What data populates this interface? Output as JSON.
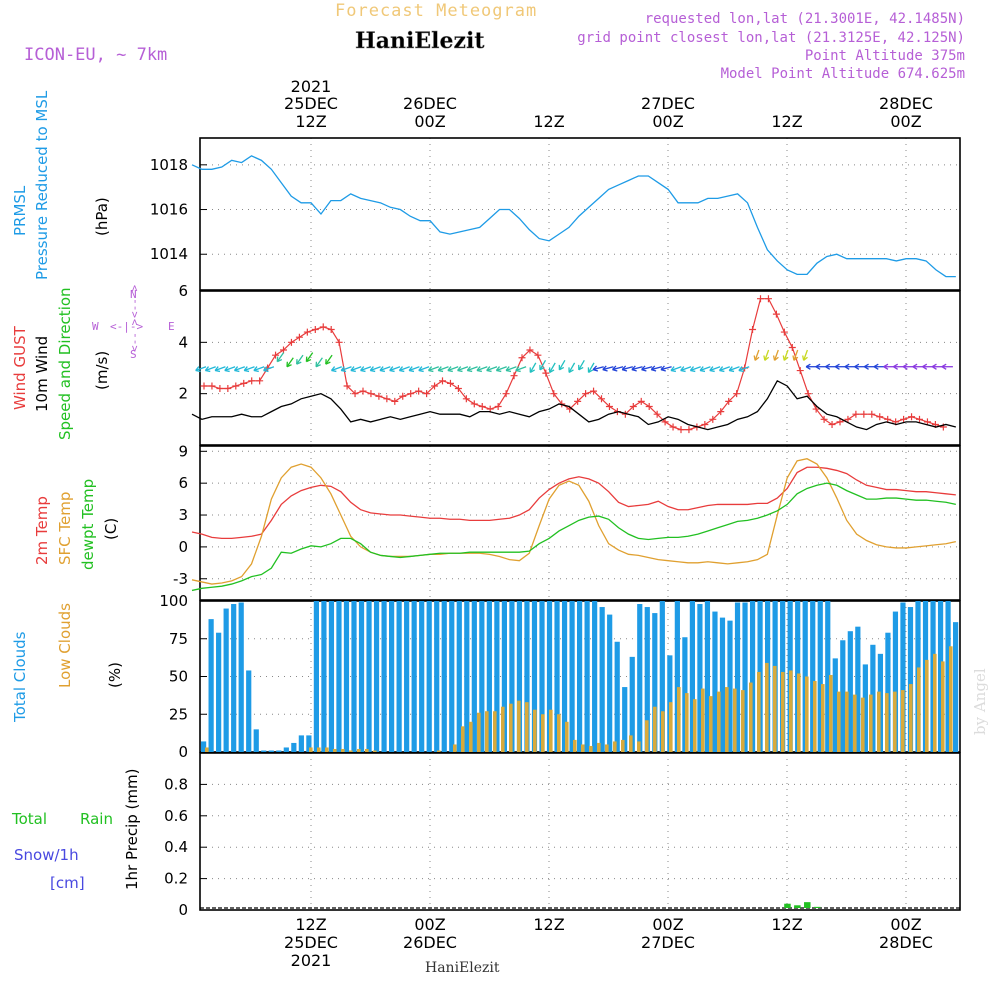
{
  "header": {
    "super_title": "Forecast Meteogram",
    "station": "HaniElezit",
    "model": "ICON-EU, ~ 7km",
    "requested": "requested lon,lat (21.3001E, 42.1485N)",
    "closest": "grid point closest lon,lat (21.3125E, 42.125N)",
    "point_alt": "Point Altitude 375m",
    "model_alt": "Model Point Altitude 674.625m",
    "watermark": "by Angel",
    "footer_station": "HaniElezit"
  },
  "colors": {
    "pressure": "#1e9be6",
    "gust": "#e83c3c",
    "wind": "#000000",
    "t2m": "#e83c3c",
    "sfc": "#e0a030",
    "dew": "#22c022",
    "total_clouds": "#1e9be6",
    "low_clouds": "#d8aa3c",
    "rain": "#22c022",
    "snow": "#4848e0",
    "purple_text": "#b65fd6",
    "orange_text": "#f0c878"
  },
  "top_axis": [
    {
      "line1": "2021",
      "line2": "25DEC",
      "line3": "12Z"
    },
    {
      "line1": "",
      "line2": "26DEC",
      "line3": "00Z"
    },
    {
      "line1": "",
      "line2": "",
      "line3": "12Z"
    },
    {
      "line1": "",
      "line2": "27DEC",
      "line3": "00Z"
    },
    {
      "line1": "",
      "line2": "",
      "line3": "12Z"
    },
    {
      "line1": "",
      "line2": "28DEC",
      "line3": "00Z"
    }
  ],
  "bottom_axis": [
    {
      "line1": "12Z",
      "line2": "25DEC",
      "line3": "2021"
    },
    {
      "line1": "00Z",
      "line2": "26DEC",
      "line3": ""
    },
    {
      "line1": "12Z",
      "line2": "",
      "line3": ""
    },
    {
      "line1": "00Z",
      "line2": "27DEC",
      "line3": ""
    },
    {
      "line1": "12Z",
      "line2": "",
      "line3": ""
    },
    {
      "line1": "00Z",
      "line2": "28DEC",
      "line3": ""
    }
  ],
  "panel_labels": {
    "p1": {
      "a": "PRMSL",
      "b": "Pressure Reduced to MSL",
      "unit": "(hPa)"
    },
    "p2": {
      "a": "Wind GUST",
      "b": "10m Wind",
      "c": "Speed and Direction",
      "unit": "(m/s)",
      "compass": {
        "n": "N",
        "s": "S",
        "w": "W",
        "e": "E",
        "up": "<-- >",
        "down": "<-- >",
        "mid": "<-|->"
      }
    },
    "p3": {
      "a": "2m Temp",
      "b": "SFC Temp",
      "c": "dewpt Temp",
      "unit": "(C)"
    },
    "p4": {
      "a": "Total Clouds",
      "b": "Low Clouds",
      "unit": "(%)"
    },
    "p5": {
      "a": "Total",
      "b": "Rain",
      "c": "Snow/1h",
      "d": "[cm]",
      "unit": "1hr Precip (mm)"
    }
  },
  "chart_data": [
    {
      "type": "line",
      "title": "PRMSL Pressure Reduced to MSL",
      "ylabel": "hPa",
      "ylim": [
        1012.4,
        1019.2
      ],
      "yticks": [
        1014,
        1016,
        1018
      ],
      "tick_labels": [
        "1014",
        "1016",
        "1018"
      ],
      "x_hours": "hours from 25DEC 00Z, step 1h, 0..78",
      "series": [
        {
          "name": "PRMSL",
          "values": [
            1018.0,
            1017.8,
            1017.8,
            1017.9,
            1018.2,
            1018.1,
            1018.4,
            1018.2,
            1017.8,
            1017.2,
            1016.6,
            1016.3,
            1016.3,
            1015.8,
            1016.4,
            1016.4,
            1016.7,
            1016.5,
            1016.4,
            1016.3,
            1016.1,
            1016.0,
            1015.7,
            1015.5,
            1015.5,
            1015.0,
            1014.9,
            1015.0,
            1015.1,
            1015.2,
            1015.6,
            1016.0,
            1016.0,
            1015.6,
            1015.1,
            1014.7,
            1014.6,
            1014.9,
            1015.2,
            1015.7,
            1016.1,
            1016.5,
            1016.9,
            1017.1,
            1017.3,
            1017.5,
            1017.5,
            1017.2,
            1016.9,
            1016.3,
            1016.3,
            1016.3,
            1016.5,
            1016.5,
            1016.6,
            1016.7,
            1016.3,
            1015.2,
            1014.2,
            1013.7,
            1013.3,
            1013.1,
            1013.1,
            1013.6,
            1013.9,
            1014.0,
            1013.8,
            1013.8,
            1013.8,
            1013.8,
            1013.8,
            1013.7,
            1013.8,
            1013.8,
            1013.7,
            1013.3,
            1013.0,
            1013.0,
            1013.2
          ]
        }
      ]
    },
    {
      "type": "line",
      "title": "Wind GUST / 10m Wind Speed and Direction",
      "ylabel": "m/s",
      "ylim": [
        0,
        6
      ],
      "yticks": [
        2,
        4,
        6
      ],
      "tick_labels": [
        "2",
        "4",
        "6"
      ],
      "series": [
        {
          "name": "Wind GUST",
          "values": [
            2.3,
            2.3,
            2.2,
            2.2,
            2.3,
            2.4,
            2.5,
            2.5,
            3.0,
            3.5,
            3.7,
            4.0,
            4.2,
            4.4,
            4.5,
            4.6,
            4.5,
            4.0,
            2.3,
            2.0,
            2.1,
            2.0,
            1.9,
            1.8,
            1.7,
            1.9,
            2.0,
            2.1,
            2.0,
            2.3,
            2.5,
            2.4,
            2.2,
            1.8,
            1.6,
            1.5,
            1.4,
            1.5,
            2.0,
            2.7,
            3.4,
            3.7,
            3.5,
            2.8,
            2.0,
            1.6,
            1.4,
            1.7,
            2.0,
            2.1,
            1.8,
            1.5,
            1.3,
            1.2,
            1.5,
            1.7,
            1.5,
            1.2,
            0.9,
            0.7,
            0.6,
            0.6,
            0.7,
            0.8,
            1.0,
            1.3,
            1.7,
            2.0,
            3.0,
            4.5,
            5.7,
            5.7,
            5.1,
            4.4,
            3.8,
            2.9,
            2.0,
            1.4,
            1.0,
            0.8,
            0.9,
            1.0,
            1.2,
            1.2,
            1.2,
            1.1,
            1.0,
            0.9,
            1.0,
            1.1,
            1.0,
            0.9,
            0.8,
            0.7
          ]
        },
        {
          "name": "10m Wind",
          "values": [
            1.2,
            1.0,
            1.1,
            1.1,
            1.1,
            1.2,
            1.1,
            1.1,
            1.3,
            1.5,
            1.6,
            1.8,
            1.9,
            2.0,
            1.8,
            1.4,
            0.9,
            1.0,
            0.9,
            1.0,
            1.1,
            1.0,
            1.1,
            1.2,
            1.3,
            1.2,
            1.2,
            1.2,
            1.1,
            1.3,
            1.3,
            1.2,
            1.3,
            1.2,
            1.1,
            1.3,
            1.4,
            1.6,
            1.5,
            1.2,
            0.9,
            1.0,
            1.2,
            1.3,
            1.2,
            1.1,
            0.8,
            0.9,
            1.1,
            1.0,
            0.8,
            0.7,
            0.6,
            0.7,
            0.8,
            1.0,
            1.1,
            1.3,
            1.8,
            2.5,
            2.3,
            1.8,
            1.9,
            1.5,
            1.2,
            1.1,
            0.9,
            0.7,
            0.6,
            0.8,
            0.9,
            0.8,
            0.9,
            0.9,
            0.8,
            0.7,
            0.8,
            0.7,
            0.6,
            0.6
          ]
        },
        {
          "name": "Wind Direction (arrows)",
          "values": [
            "E",
            "NE",
            "SE"
          ]
        }
      ]
    },
    {
      "type": "line",
      "title": "2m Temp / SFC Temp / dewpt Temp",
      "ylabel": "C",
      "ylim": [
        -5,
        9.5
      ],
      "yticks": [
        -3,
        0,
        3,
        6,
        9
      ],
      "tick_labels": [
        "-3",
        "0",
        "3",
        "6",
        "9"
      ],
      "series": [
        {
          "name": "2m Temp",
          "values": [
            1.4,
            1.2,
            0.9,
            0.8,
            0.8,
            0.9,
            1.0,
            1.2,
            2.5,
            4.0,
            4.8,
            5.3,
            5.6,
            5.8,
            5.7,
            5.2,
            4.2,
            3.5,
            3.2,
            3.1,
            3.0,
            3.0,
            2.9,
            2.8,
            2.7,
            2.7,
            2.6,
            2.6,
            2.5,
            2.5,
            2.5,
            2.6,
            2.7,
            3.0,
            3.5,
            4.6,
            5.4,
            6.0,
            6.4,
            6.6,
            6.4,
            6.0,
            5.2,
            4.2,
            3.8,
            3.9,
            4.0,
            4.3,
            3.8,
            3.5,
            3.5,
            3.7,
            3.9,
            4.0,
            4.0,
            4.0,
            4.0,
            4.1,
            4.1,
            4.6,
            5.5,
            7.0,
            7.5,
            7.5,
            7.4,
            7.2,
            6.9,
            6.3,
            5.8,
            5.6,
            5.4,
            5.4,
            5.3,
            5.2,
            5.2,
            5.1,
            5.0,
            4.9,
            4.8
          ]
        },
        {
          "name": "SFC Temp",
          "values": [
            -3.1,
            -3.3,
            -3.5,
            -3.4,
            -3.2,
            -2.8,
            -1.6,
            1.0,
            4.5,
            6.5,
            7.5,
            7.8,
            7.5,
            6.5,
            5.0,
            3.0,
            1.0,
            0.0,
            -0.5,
            -0.8,
            -0.9,
            -0.9,
            -0.9,
            -0.8,
            -0.7,
            -0.7,
            -0.6,
            -0.6,
            -0.6,
            -0.6,
            -0.7,
            -0.9,
            -1.2,
            -1.3,
            -0.6,
            2.0,
            4.5,
            5.8,
            6.2,
            5.8,
            4.3,
            2.0,
            0.3,
            -0.3,
            -0.7,
            -0.8,
            -1.0,
            -1.2,
            -1.3,
            -1.4,
            -1.5,
            -1.5,
            -1.4,
            -1.5,
            -1.6,
            -1.5,
            -1.4,
            -1.2,
            -0.7,
            3.0,
            6.5,
            8.1,
            8.3,
            7.8,
            6.5,
            4.6,
            2.5,
            1.2,
            0.6,
            0.2,
            0.0,
            -0.1,
            -0.1,
            0.0,
            0.1,
            0.2,
            0.3,
            0.5,
            0.6
          ]
        },
        {
          "name": "dewpt Temp",
          "values": [
            -4.1,
            -3.9,
            -3.8,
            -3.7,
            -3.5,
            -3.2,
            -2.8,
            -2.6,
            -2.0,
            -0.5,
            -0.6,
            -0.2,
            0.1,
            0.0,
            0.3,
            0.8,
            0.8,
            0.3,
            -0.5,
            -0.8,
            -0.9,
            -1.0,
            -0.9,
            -0.8,
            -0.7,
            -0.6,
            -0.6,
            -0.6,
            -0.5,
            -0.5,
            -0.5,
            -0.5,
            -0.5,
            -0.5,
            -0.4,
            0.3,
            0.8,
            1.5,
            2.0,
            2.5,
            2.8,
            2.9,
            2.6,
            1.8,
            1.2,
            0.8,
            0.7,
            0.8,
            0.9,
            0.9,
            1.0,
            1.2,
            1.5,
            1.8,
            2.1,
            2.4,
            2.5,
            2.7,
            3.0,
            3.4,
            4.0,
            5.0,
            5.5,
            5.8,
            6.0,
            5.8,
            5.3,
            4.9,
            4.5,
            4.5,
            4.6,
            4.6,
            4.5,
            4.4,
            4.4,
            4.3,
            4.2,
            4.0,
            3.9
          ]
        }
      ]
    },
    {
      "type": "bar",
      "title": "Total Clouds / Low Clouds",
      "ylabel": "%",
      "ylim": [
        0,
        100
      ],
      "yticks": [
        0,
        25,
        50,
        75,
        100
      ],
      "tick_labels": [
        "0",
        "25",
        "50",
        "75",
        "100"
      ],
      "series": [
        {
          "name": "Total Clouds",
          "values": [
            7,
            88,
            79,
            95,
            98,
            99,
            54,
            15,
            1,
            1,
            1,
            3,
            6,
            11,
            11,
            100,
            100,
            100,
            100,
            100,
            100,
            100,
            100,
            100,
            100,
            100,
            100,
            100,
            100,
            100,
            100,
            100,
            100,
            100,
            100,
            100,
            100,
            100,
            100,
            100,
            100,
            100,
            100,
            100,
            100,
            100,
            100,
            100,
            100,
            100,
            100,
            100,
            100,
            96,
            91,
            73,
            43,
            63,
            98,
            96,
            92,
            100,
            64,
            100,
            76,
            100,
            98,
            100,
            93,
            89,
            87,
            99,
            99,
            100,
            100,
            100,
            100,
            100,
            100,
            100,
            100,
            100,
            100,
            100,
            62,
            74,
            80,
            83,
            58,
            71,
            65,
            79,
            93,
            99,
            96,
            100,
            100,
            100,
            100,
            100,
            86
          ]
        },
        {
          "name": "Low Clouds",
          "values": [
            3,
            0,
            0,
            0,
            0,
            0,
            0,
            0,
            0,
            0,
            0,
            0,
            0,
            3,
            3,
            3,
            2,
            2,
            1,
            2,
            2,
            1,
            0,
            0,
            0,
            0,
            0,
            0,
            0,
            1,
            0,
            5,
            17,
            20,
            26,
            27,
            27,
            30,
            32,
            34,
            33,
            28,
            25,
            28,
            25,
            20,
            8,
            5,
            4,
            6,
            5,
            7,
            8,
            11,
            7,
            21,
            30,
            27,
            33,
            43,
            39,
            35,
            42,
            37,
            40,
            43,
            42,
            41,
            46,
            53,
            59,
            57,
            53,
            54,
            52,
            50,
            47,
            45,
            51,
            40,
            40,
            38,
            36,
            38,
            40,
            39,
            40,
            41,
            45,
            56,
            61,
            65,
            60,
            70
          ]
        }
      ]
    },
    {
      "type": "bar",
      "title": "1hr Precip (mm)",
      "ylabel": "1hr Precip (mm)",
      "ylim": [
        0,
        1.0
      ],
      "yticks": [
        0,
        0.2,
        0.4,
        0.6,
        0.8
      ],
      "tick_labels": [
        "0",
        "0.2",
        "0.4",
        "0.6",
        "0.8"
      ],
      "series": [
        {
          "name": "Total Rain",
          "values": [
            0,
            0,
            0,
            0,
            0,
            0,
            0,
            0,
            0,
            0,
            0,
            0,
            0,
            0,
            0,
            0,
            0,
            0,
            0,
            0,
            0,
            0,
            0,
            0,
            0,
            0,
            0,
            0,
            0,
            0,
            0,
            0,
            0,
            0,
            0,
            0,
            0,
            0,
            0,
            0,
            0,
            0,
            0,
            0,
            0,
            0,
            0,
            0,
            0,
            0,
            0,
            0,
            0,
            0,
            0,
            0,
            0,
            0,
            0,
            0,
            0.04,
            0.03,
            0.05,
            0.02,
            0,
            0,
            0,
            0,
            0,
            0,
            0,
            0,
            0,
            0,
            0,
            0,
            0,
            0,
            0
          ]
        },
        {
          "name": "Snow/1h",
          "values": []
        }
      ]
    }
  ]
}
